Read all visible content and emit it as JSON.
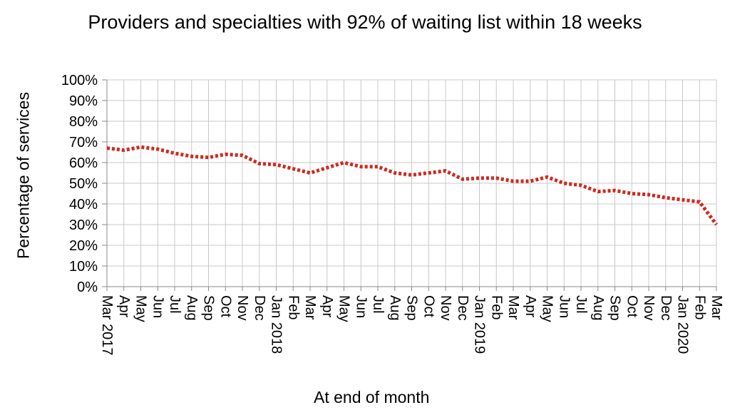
{
  "chart_data": {
    "type": "line",
    "title": "Providers and specialties with 92% of waiting list within 18 weeks",
    "xlabel": "At end of month",
    "ylabel": "Percentage  of  services",
    "ylim": [
      0,
      100
    ],
    "y_ticks": [
      "0%",
      "10%",
      "20%",
      "30%",
      "40%",
      "50%",
      "60%",
      "70%",
      "80%",
      "90%",
      "100%"
    ],
    "grid": true,
    "legend": "none",
    "line_color": "#cc2a1f",
    "line_style": "dotted",
    "categories": [
      "Mar  2017",
      "Apr",
      "May",
      "Jun",
      "Jul",
      "Aug",
      "Sep",
      "Oct",
      "Nov",
      "Dec",
      "Jan  2018",
      "Feb",
      "Mar",
      "Apr",
      "May",
      "Jun",
      "Jul",
      "Aug",
      "Sep",
      "Oct",
      "Nov",
      "Dec",
      "Jan  2019",
      "Feb",
      "Mar",
      "Apr",
      "May",
      "Jun",
      "Jul",
      "Aug",
      "Sep",
      "Oct",
      "Nov",
      "Dec",
      "Jan  2020",
      "Feb",
      "Mar"
    ],
    "series": [
      {
        "values": [
          67,
          66,
          67.5,
          66.5,
          64.5,
          63,
          62.5,
          64,
          63.5,
          59.5,
          59,
          57,
          55,
          57.5,
          60,
          58,
          58,
          55,
          54,
          55,
          56,
          52,
          52.5,
          52.5,
          51,
          51,
          53,
          50,
          49,
          46,
          46.5,
          45,
          44.5,
          43,
          42,
          41,
          30
        ]
      }
    ]
  }
}
